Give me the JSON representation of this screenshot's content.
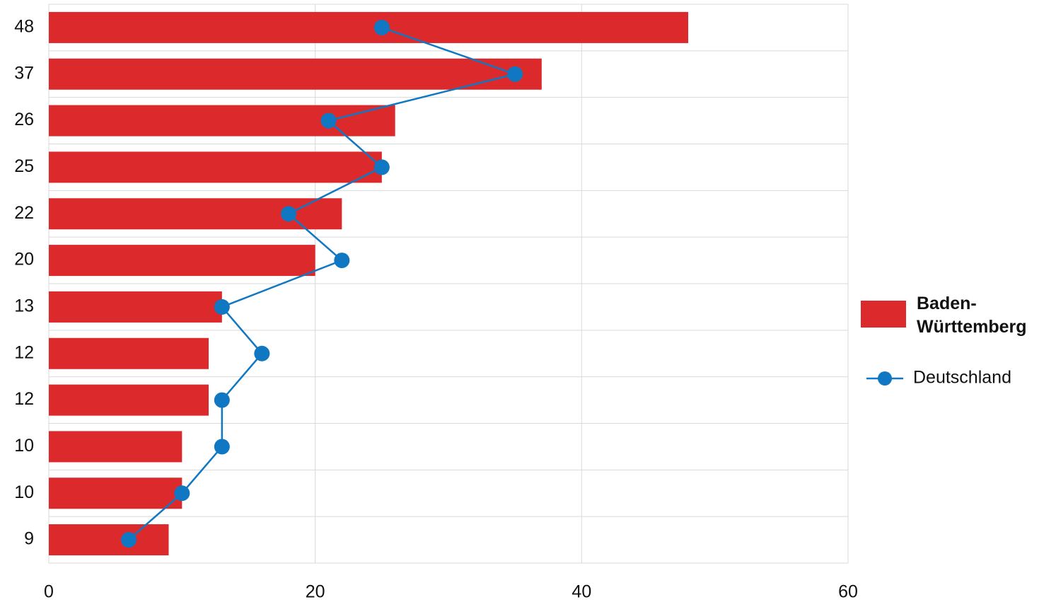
{
  "chart_data": {
    "type": "bar",
    "orientation": "horizontal",
    "categories": [
      "48",
      "37",
      "26",
      "25",
      "22",
      "20",
      "13",
      "12",
      "12",
      "10",
      "10",
      "9"
    ],
    "series": [
      {
        "name": "Baden-Württemberg",
        "type": "bar",
        "color": "#dc292b",
        "values": [
          48,
          37,
          26,
          25,
          22,
          20,
          13,
          12,
          12,
          10,
          10,
          9
        ]
      },
      {
        "name": "Deutschland",
        "type": "line",
        "color": "#1078c2",
        "values": [
          25,
          35,
          21,
          25,
          18,
          22,
          13,
          16,
          13,
          13,
          10,
          6
        ]
      }
    ],
    "xlim": [
      0,
      60
    ],
    "xticks": [
      0,
      20,
      40,
      60
    ],
    "grid": true,
    "legend": "right"
  }
}
